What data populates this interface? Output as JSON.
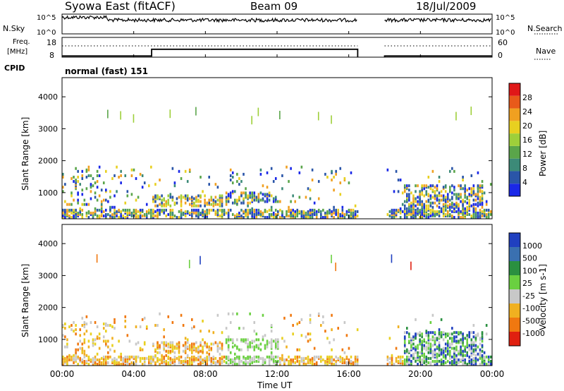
{
  "header": {
    "station": "Syowa East (fitACF)",
    "beam": "Beam 09",
    "date": "18/Jul/2009"
  },
  "top_panels": {
    "nsky_label": "N.Sky",
    "nsky_ticks": [
      "10^5",
      "10^0"
    ],
    "nsearch_label": "N.Search",
    "nsearch_ticks": [
      "10^5",
      "10^0"
    ],
    "freq_label_line1": "Freq.",
    "freq_label_line2": "[MHz]",
    "freq_ticks": [
      "18",
      "8"
    ],
    "nave_label": "Nave",
    "nave_ticks": [
      "60",
      "0"
    ],
    "cpid_label": "CPID",
    "cpid_value": "normal (fast) 151"
  },
  "chart_data": [
    {
      "type": "heatmap",
      "panel": "power",
      "ylabel": "Slant Range [km]",
      "yticks": [
        1000,
        2000,
        3000,
        4000
      ],
      "ylim": [
        180,
        4600
      ],
      "xlim": [
        0,
        24
      ],
      "colorbar_label": "Power [dB]",
      "colorbar_ticks": [
        "4",
        "8",
        "12",
        "16",
        "20",
        "24",
        "28"
      ],
      "colors": [
        "#1a28e8",
        "#2a55a8",
        "#3c8a78",
        "#5aa54a",
        "#9ecf3a",
        "#e8d020",
        "#f0a020",
        "#e85a1a",
        "#e01818"
      ],
      "data_gaps_ut": [
        [
          16.5,
          18.0
        ]
      ]
    },
    {
      "type": "heatmap",
      "panel": "velocity",
      "ylabel": "Slant Range [km]",
      "yticks": [
        1000,
        2000,
        3000,
        4000
      ],
      "ylim": [
        180,
        4600
      ],
      "xlim": [
        0,
        24
      ],
      "colorbar_label": "Velocity [m s-1]",
      "colorbar_ticks": [
        "1000",
        "500",
        "100",
        "25",
        "-25",
        "-100",
        "-500",
        "-1000"
      ],
      "colors": [
        "#2040c0",
        "#3a70b0",
        "#2a9040",
        "#6ad040",
        "#c8c8c8",
        "#f0b020",
        "#f07810",
        "#e02010"
      ],
      "data_gaps_ut": [
        [
          16.5,
          18.0
        ]
      ]
    }
  ],
  "x_axis": {
    "ticks": [
      "00:00",
      "04:00",
      "08:00",
      "12:00",
      "16:00",
      "20:00",
      "00:00"
    ],
    "label": "Time UT"
  }
}
